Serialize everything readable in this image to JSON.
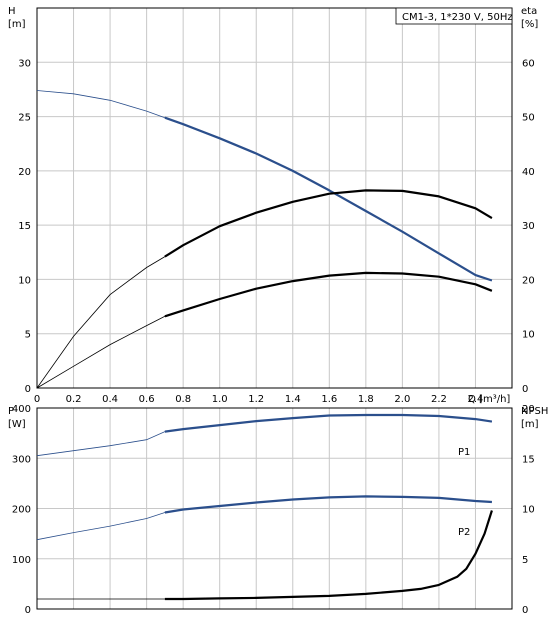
{
  "chart_data": [
    {
      "type": "line",
      "title": "CM1-3, 1*230 V, 50Hz",
      "xlabel": "Q [m³/h]",
      "ylabel_left": "H",
      "ylabel_left_unit": "[m]",
      "ylabel_right": "eta",
      "ylabel_right_unit": "[%]",
      "xlim": [
        0,
        2.6
      ],
      "ylim_left": [
        0,
        35
      ],
      "ylim_right": [
        0,
        70
      ],
      "x_ticks": [
        0,
        0.2,
        0.4,
        0.6,
        0.8,
        1.0,
        1.2,
        1.4,
        1.6,
        1.8,
        2.0,
        2.2,
        2.4
      ],
      "x_tick_labels": [
        "0",
        "0.2",
        "0.4",
        "0.6",
        "0.8",
        "1.0",
        "1.2",
        "1.4",
        "1.6",
        "1.8",
        "2.0",
        "2.2",
        "2.4"
      ],
      "y_left_ticks": [
        0,
        5,
        10,
        15,
        20,
        25,
        30
      ],
      "y_right_ticks": [
        0,
        10,
        20,
        30,
        40,
        50,
        60
      ],
      "grid": true,
      "series": [
        {
          "axis": "left",
          "color": "#2b4f8c",
          "x": [
            0,
            0.2,
            0.4,
            0.6,
            0.7,
            0.8,
            1.0,
            1.2,
            1.4,
            1.6,
            1.8,
            2.0,
            2.2,
            2.4,
            2.49
          ],
          "values": [
            27.4,
            27.1,
            26.5,
            25.5,
            24.9,
            24.3,
            23.0,
            21.6,
            20.0,
            18.2,
            16.3,
            14.4,
            12.4,
            10.4,
            9.9
          ],
          "bold_from": 0.7
        },
        {
          "axis": "right",
          "color": "#000000",
          "x": [
            0,
            0.2,
            0.4,
            0.6,
            0.7,
            0.8,
            1.0,
            1.2,
            1.4,
            1.6,
            1.8,
            2.0,
            2.2,
            2.4,
            2.49
          ],
          "values": [
            0,
            9.5,
            17.2,
            22.2,
            24.2,
            26.3,
            29.8,
            32.3,
            34.3,
            35.8,
            36.4,
            36.3,
            35.3,
            33.1,
            31.3
          ],
          "bold_from": 0.7
        },
        {
          "axis": "right",
          "color": "#000000",
          "x": [
            0,
            0.2,
            0.4,
            0.6,
            0.7,
            0.8,
            1.0,
            1.2,
            1.4,
            1.6,
            1.8,
            2.0,
            2.2,
            2.4,
            2.49
          ],
          "values": [
            0,
            4.0,
            8.0,
            11.5,
            13.2,
            14.3,
            16.4,
            18.3,
            19.7,
            20.7,
            21.2,
            21.1,
            20.5,
            19.1,
            17.9
          ],
          "bold_from": 0.7
        }
      ]
    },
    {
      "type": "line",
      "xlim": [
        0,
        2.6
      ],
      "ylabel_left": "P",
      "ylabel_left_unit": "[W]",
      "ylabel_right": "NPSH",
      "ylabel_right_unit": "[m]",
      "ylim_left": [
        0,
        400
      ],
      "ylim_right": [
        0,
        20
      ],
      "y_left_ticks": [
        0,
        100,
        200,
        300,
        400
      ],
      "y_right_ticks": [
        0,
        5,
        10,
        15,
        20
      ],
      "grid": true,
      "series": [
        {
          "name": "P1",
          "axis": "left",
          "color": "#2b4f8c",
          "x": [
            0,
            0.2,
            0.4,
            0.6,
            0.7,
            0.8,
            1.0,
            1.2,
            1.4,
            1.6,
            1.8,
            2.0,
            2.2,
            2.4,
            2.49
          ],
          "values": [
            305,
            315,
            325,
            337,
            353,
            358,
            366,
            374,
            380,
            385,
            386,
            386,
            384,
            378,
            373
          ],
          "bold_from": 0.7
        },
        {
          "name": "P2",
          "axis": "left",
          "color": "#2b4f8c",
          "x": [
            0,
            0.2,
            0.4,
            0.6,
            0.7,
            0.8,
            1.0,
            1.2,
            1.4,
            1.6,
            1.8,
            2.0,
            2.2,
            2.4,
            2.49
          ],
          "values": [
            138,
            152,
            165,
            180,
            192,
            198,
            205,
            212,
            218,
            222,
            224,
            223,
            221,
            215,
            213
          ],
          "bold_from": 0.7
        },
        {
          "axis": "right",
          "color": "#000000",
          "x": [
            0,
            0.2,
            0.4,
            0.6,
            0.7,
            0.8,
            1.0,
            1.2,
            1.4,
            1.6,
            1.8,
            2.0,
            2.1,
            2.2,
            2.3,
            2.35,
            2.4,
            2.45,
            2.49
          ],
          "values": [
            1.0,
            1.0,
            1.0,
            1.0,
            1.0,
            1.0,
            1.05,
            1.1,
            1.2,
            1.3,
            1.5,
            1.8,
            2.0,
            2.4,
            3.2,
            4.0,
            5.5,
            7.5,
            9.8
          ],
          "bold_from": 0.7
        }
      ]
    }
  ]
}
